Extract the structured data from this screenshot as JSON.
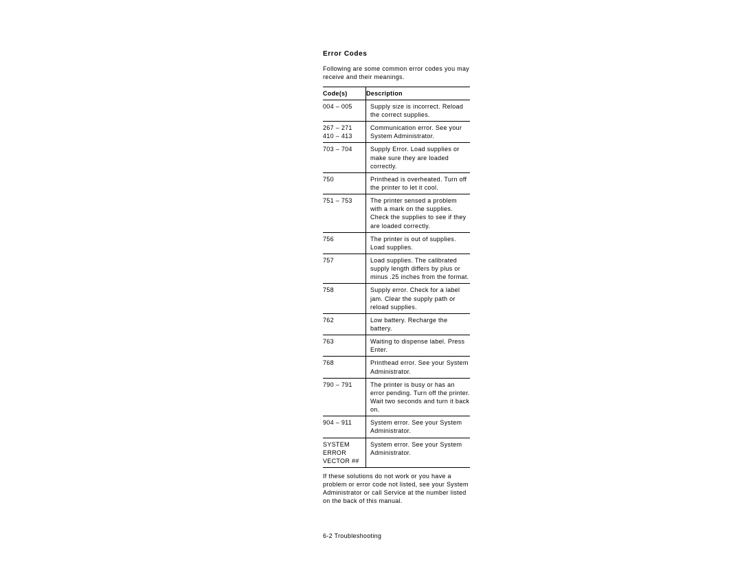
{
  "heading": "Error Codes",
  "intro": "Following are some common error codes you may receive and their meanings.",
  "table": {
    "columns": [
      "Code(s)",
      "Description"
    ],
    "rows": [
      {
        "code": "004 – 005",
        "desc": "Supply size is incorrect.  Reload the correct supplies."
      },
      {
        "code": "267 – 271\n410 – 413",
        "desc": "Communication error.  See your System Administrator."
      },
      {
        "code": "703 – 704",
        "desc": "Supply Error.  Load supplies or make sure they are loaded correctly."
      },
      {
        "code": "750",
        "desc": "Printhead is overheated.  Turn off the printer to let it cool."
      },
      {
        "code": "751 – 753",
        "desc": "The printer sensed a problem with a mark on the supplies.  Check the supplies to see if they are loaded correctly."
      },
      {
        "code": "756",
        "desc": "The printer is out of supplies.  Load supplies."
      },
      {
        "code": "757",
        "desc": "Load supplies.  The calibrated supply length differs by plus or minus .25 inches from the format."
      },
      {
        "code": "758",
        "desc": "Supply error.  Check for a label jam.  Clear the supply path or reload supplies."
      },
      {
        "code": "762",
        "desc": "Low battery.  Recharge the battery."
      },
      {
        "code": "763",
        "desc": "Waiting to dispense label.  Press Enter."
      },
      {
        "code": "768",
        "desc": "Printhead error.  See your System Administrator."
      },
      {
        "code": "790 – 791",
        "desc": "The printer is busy or has an error pending.  Turn off the printer.  Wait two seconds and turn it back on."
      },
      {
        "code": "904 – 911",
        "desc": "System error.  See your System Administrator."
      },
      {
        "code": "SYSTEM ERROR VECTOR ##",
        "desc": "System error.  See your System Administrator."
      }
    ]
  },
  "outro": "If these solutions do not work or you have a problem or error code not listed, see your System Administrator or call Service at the number listed on the back of this manual.",
  "footer": "6-2  Troubleshooting"
}
